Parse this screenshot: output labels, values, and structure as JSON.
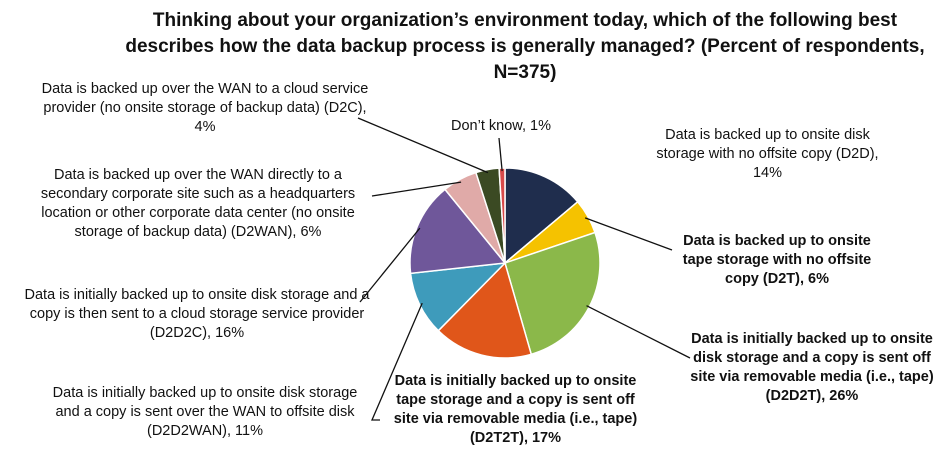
{
  "chart_data": {
    "type": "pie",
    "title": "Thinking about your organization’s environment today, which of the following best describes how the data backup process is generally managed? (Percent of respondents, N=375)",
    "slices": [
      {
        "name": "Data is backed up to onsite disk storage with no offsite copy (D2D)",
        "value": 14,
        "label": "Data is backed up to onsite disk storage with no offsite copy (D2D), 14%",
        "color": "#1f2d4d"
      },
      {
        "name": "Data is backed up to onsite tape storage with no offsite copy (D2T)",
        "value": 6,
        "label": "Data is backed up to onsite tape storage with no offsite copy (D2T), 6%",
        "color": "#f5c200"
      },
      {
        "name": "Data is initially backed up to onsite disk storage and a copy is sent off site via removable media (i.e., tape) (D2D2T)",
        "value": 26,
        "label": "Data is initially backed up to onsite disk storage and a copy is sent off site via removable media (i.e., tape) (D2D2T), 26%",
        "color": "#8bb84a"
      },
      {
        "name": "Data is initially backed up to onsite tape storage and a copy is sent off site via removable media (i.e., tape) (D2T2T)",
        "value": 17,
        "label": "Data is initially backed up to onsite tape storage and a copy is sent off site via removable media (i.e., tape) (D2T2T), 17%",
        "color": "#e0561a"
      },
      {
        "name": "Data is initially backed up to onsite disk storage and a copy is sent over the WAN to offsite disk (D2D2WAN)",
        "value": 11,
        "label": "Data is initially backed up to onsite disk storage and a copy is sent over the WAN to offsite disk (D2D2WAN), 11%",
        "color": "#3e9bbb"
      },
      {
        "name": "Data is initially backed up to onsite disk storage and a copy is then sent to a cloud storage service provider (D2D2C)",
        "value": 16,
        "label": "Data is initially backed up to onsite disk storage and a copy is then sent to a cloud storage service provider (D2D2C), 16%",
        "color": "#6f579a"
      },
      {
        "name": "Data is backed up over the WAN directly to a secondary corporate site such as a headquarters location or other corporate data center (no onsite storage of backup data) (D2WAN)",
        "value": 6,
        "label": "Data is backed up over the WAN directly to a secondary corporate site such as a headquarters location or other corporate data center (no onsite storage of backup data) (D2WAN), 6%",
        "color": "#e0aaa8"
      },
      {
        "name": "Data is backed up over the WAN to a cloud service provider (no onsite storage of backup data) (D2C)",
        "value": 4,
        "label": "Data is backed up over the WAN to a cloud service provider (no onsite storage of backup data) (D2C), 4%",
        "color": "#3b4a23"
      },
      {
        "name": "Don’t know",
        "value": 1,
        "label": "Don’t know, 1%",
        "color": "#d84a4a"
      }
    ]
  }
}
